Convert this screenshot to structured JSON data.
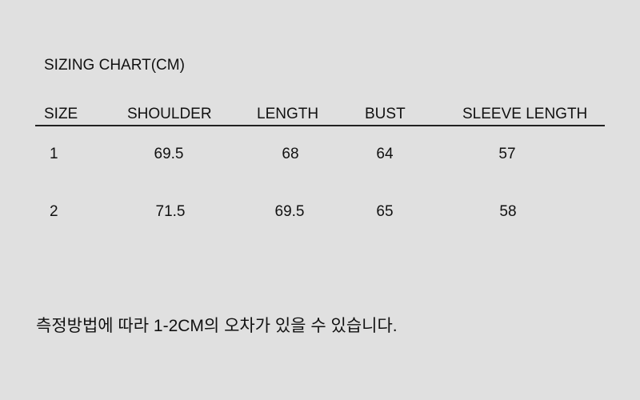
{
  "title": "SIZING CHART(CM)",
  "headers": [
    "SIZE",
    "SHOULDER",
    "LENGTH",
    "BUST",
    "SLEEVE LENGTH"
  ],
  "rows": [
    [
      "1",
      "69.5",
      "68",
      "64",
      "57"
    ],
    [
      "2",
      "71.5",
      "69.5",
      "65",
      "58"
    ]
  ],
  "note": "측정방법에 따라 1-2CM의 오차가 있을 수 있습니다."
}
